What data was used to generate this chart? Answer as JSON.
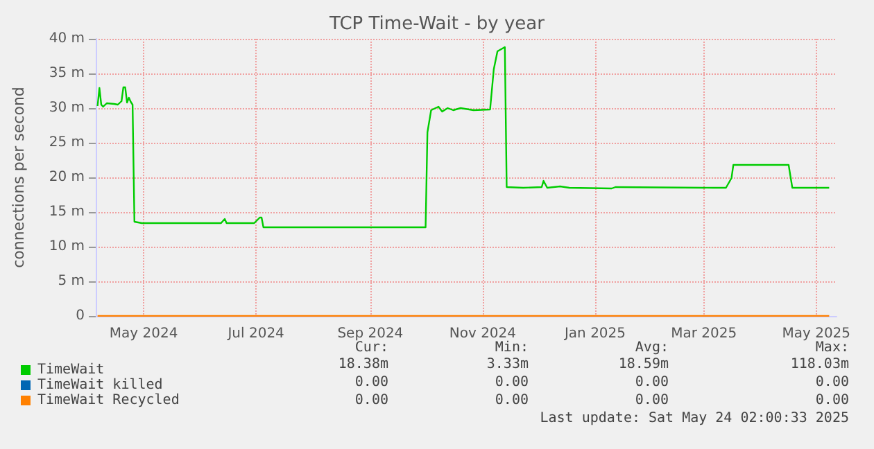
{
  "chart_data": {
    "type": "line",
    "title": "TCP Time-Wait - by year",
    "ylabel": "connections per second",
    "xlim": [
      "2024-04-05",
      "2025-05-12"
    ],
    "xticks": [
      {
        "value": "2024-05",
        "label": "May 2024"
      },
      {
        "value": "2024-07",
        "label": "Jul 2024"
      },
      {
        "value": "2024-09",
        "label": "Sep 2024"
      },
      {
        "value": "2024-11",
        "label": "Nov 2024"
      },
      {
        "value": "2025-01",
        "label": "Jan 2025"
      },
      {
        "value": "2025-03",
        "label": "Mar 2025"
      },
      {
        "value": "2025-05",
        "label": "May 2025"
      }
    ],
    "ylim": [
      0,
      40
    ],
    "yticks": [
      0,
      {
        "value": 5,
        "label": "5 m"
      },
      {
        "value": 10,
        "label": "10 m"
      },
      {
        "value": 15,
        "label": "15 m"
      },
      {
        "value": 20,
        "label": "20 m"
      },
      {
        "value": 25,
        "label": "25 m"
      },
      {
        "value": 30,
        "label": "30 m"
      },
      {
        "value": 35,
        "label": "35 m"
      },
      {
        "value": 40,
        "label": "40 m"
      }
    ],
    "grid": true,
    "legend": "bottom left",
    "marker": "none",
    "line_style": "solid",
    "series": [
      {
        "name": "TimeWait",
        "color": "#00cc00",
        "x": [
          "2024-04-06",
          "2024-04-07",
          "2024-04-08",
          "2024-04-09",
          "2024-04-11",
          "2024-04-15",
          "2024-04-17",
          "2024-04-19",
          "2024-04-20",
          "2024-04-21",
          "2024-04-22",
          "2024-04-23",
          "2024-04-24",
          "2024-04-25",
          "2024-04-26",
          "2024-04-30",
          "2024-06-12",
          "2024-06-14",
          "2024-06-15",
          "2024-06-30",
          "2024-07-03",
          "2024-07-04",
          "2024-07-05",
          "2024-10-01",
          "2024-10-02",
          "2024-10-04",
          "2024-10-08",
          "2024-10-10",
          "2024-10-13",
          "2024-10-16",
          "2024-10-20",
          "2024-10-27",
          "2024-11-05",
          "2024-11-07",
          "2024-11-09",
          "2024-11-13",
          "2024-11-14",
          "2024-11-23",
          "2024-12-03",
          "2024-12-04",
          "2024-12-06",
          "2024-12-13",
          "2024-12-18",
          "2025-01-10",
          "2025-01-12",
          "2025-03-06",
          "2025-03-13",
          "2025-03-16",
          "2025-03-17",
          "2025-04-16",
          "2025-04-18",
          "2025-05-08"
        ],
        "values": [
          30.3,
          32.9,
          30.5,
          30.2,
          30.7,
          30.6,
          30.5,
          31,
          33,
          33,
          30.8,
          31.5,
          30.9,
          30.5,
          13.6,
          13.4,
          13.4,
          14,
          13.4,
          13.4,
          14.2,
          14.2,
          12.8,
          12.8,
          26.5,
          29.7,
          30.2,
          29.5,
          30,
          29.7,
          30,
          29.7,
          29.8,
          35.6,
          38.2,
          38.8,
          18.6,
          18.5,
          18.6,
          19.5,
          18.5,
          18.7,
          18.5,
          18.4,
          18.6,
          18.5,
          18.5,
          19.9,
          21.8,
          21.8,
          18.5,
          18.5
        ]
      },
      {
        "name": "TimeWait killed",
        "color": "#0066b3"
      },
      {
        "name": "TimeWait Recycled",
        "color": "#ff8000",
        "x": [
          "2024-04-06",
          "2025-05-08"
        ],
        "values": [
          0,
          0
        ]
      }
    ],
    "annotations": [
      "Cur:",
      "Min:",
      "Avg:",
      "Max:",
      "18.38m",
      "3.33m",
      "18.59m",
      "118.03m",
      "0.00",
      "0.00",
      "0.00",
      "0.00",
      "0.00",
      "0.00",
      "0.00",
      "0.00",
      "Last update: Sat May 24 02:00:33 2025"
    ]
  }
}
